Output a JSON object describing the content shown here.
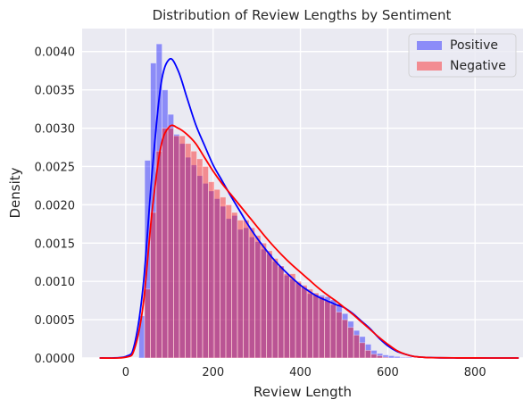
{
  "chart_data": {
    "type": "histogram",
    "title": "Distribution of Review Lengths by Sentiment",
    "xlabel": "Review Length",
    "ylabel": "Density",
    "xlim": [
      -100,
      910
    ],
    "ylim": [
      0,
      0.0043
    ],
    "xticks": [
      0,
      200,
      400,
      600,
      800
    ],
    "yticks": [
      0.0,
      0.0005,
      0.001,
      0.0015,
      0.002,
      0.0025,
      0.003,
      0.0035,
      0.004
    ],
    "ytick_labels": [
      "0.0000",
      "0.0005",
      "0.0010",
      "0.0015",
      "0.0020",
      "0.0025",
      "0.0030",
      "0.0035",
      "0.0040"
    ],
    "grid": true,
    "legend_position": "top-right",
    "series": [
      {
        "name": "Positive",
        "color": "#0000ff",
        "bin_start": 30,
        "bin_width": 13.3,
        "densities": [
          0.00055,
          0.00258,
          0.00385,
          0.0041,
          0.0035,
          0.00318,
          0.00292,
          0.0028,
          0.00262,
          0.00252,
          0.00238,
          0.00228,
          0.00218,
          0.00208,
          0.00198,
          0.00182,
          0.00186,
          0.00168,
          0.0017,
          0.00158,
          0.00152,
          0.00142,
          0.00136,
          0.00126,
          0.0012,
          0.00108,
          0.00103,
          0.00098,
          0.00092,
          0.00084,
          0.00083,
          0.00082,
          0.0008,
          0.00076,
          0.0007,
          0.00058,
          0.00048,
          0.00036,
          0.00028,
          0.00018,
          0.0001,
          6e-05,
          4e-05,
          3e-05,
          2e-05,
          1e-05,
          1e-05
        ],
        "kde_x": [
          -60,
          0,
          20,
          40,
          60,
          80,
          100,
          120,
          140,
          160,
          180,
          200,
          220,
          240,
          260,
          280,
          300,
          320,
          340,
          360,
          380,
          400,
          420,
          440,
          460,
          480,
          500,
          520,
          540,
          560,
          580,
          600,
          620,
          640,
          660,
          680,
          700,
          720,
          760,
          800,
          850,
          900
        ],
        "kde_y": [
          0,
          2e-05,
          0.00018,
          0.00095,
          0.0024,
          0.00355,
          0.0039,
          0.00375,
          0.0034,
          0.00305,
          0.00278,
          0.00252,
          0.00232,
          0.00212,
          0.00193,
          0.00174,
          0.00157,
          0.00142,
          0.00128,
          0.00116,
          0.00105,
          0.00095,
          0.00087,
          0.0008,
          0.00075,
          0.0007,
          0.00066,
          0.00058,
          0.00048,
          0.00038,
          0.00026,
          0.00016,
          9e-05,
          5e-05,
          2e-05,
          1e-05,
          5e-06,
          2e-06,
          1e-06,
          5e-07,
          2e-07,
          0
        ]
      },
      {
        "name": "Negative",
        "color": "#ff0000",
        "bin_start": 43,
        "bin_width": 13.3,
        "densities": [
          0.0009,
          0.0019,
          0.0027,
          0.003,
          0.003,
          0.0029,
          0.0029,
          0.0028,
          0.0027,
          0.0026,
          0.0025,
          0.0023,
          0.0022,
          0.0021,
          0.002,
          0.0019,
          0.0018,
          0.0018,
          0.0017,
          0.0016,
          0.0015,
          0.0014,
          0.0013,
          0.0012,
          0.0011,
          0.0011,
          0.001,
          0.00095,
          0.0009,
          0.00085,
          0.0008,
          0.00075,
          0.0007,
          0.0006,
          0.0005,
          0.0004,
          0.0003,
          0.0002,
          0.0001,
          5e-05,
          3e-05,
          1e-05
        ],
        "kde_x": [
          -60,
          0,
          20,
          40,
          60,
          80,
          100,
          120,
          140,
          160,
          180,
          200,
          220,
          240,
          260,
          280,
          300,
          320,
          340,
          360,
          380,
          400,
          420,
          440,
          460,
          480,
          500,
          520,
          540,
          560,
          580,
          600,
          620,
          640,
          660,
          680,
          700,
          760,
          800,
          850,
          900
        ],
        "kde_y": [
          0,
          1e-05,
          0.00012,
          0.0007,
          0.0019,
          0.00275,
          0.00302,
          0.003,
          0.00292,
          0.0028,
          0.00262,
          0.00244,
          0.00228,
          0.00214,
          0.002,
          0.00186,
          0.00172,
          0.00158,
          0.00145,
          0.00133,
          0.00122,
          0.00112,
          0.00102,
          0.00092,
          0.00083,
          0.00075,
          0.00066,
          0.00057,
          0.00047,
          0.00037,
          0.00027,
          0.00018,
          0.0001,
          5e-05,
          2e-05,
          1e-05,
          4e-06,
          1e-06,
          5e-07,
          2e-07,
          0
        ]
      }
    ]
  }
}
